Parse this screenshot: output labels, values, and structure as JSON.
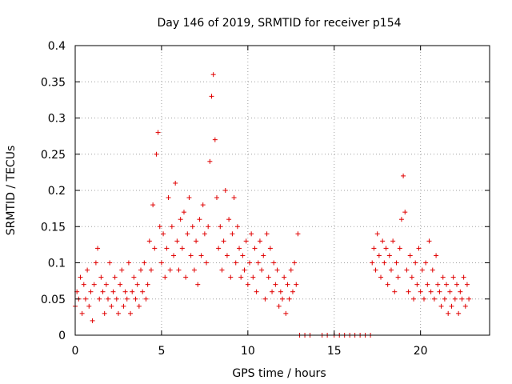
{
  "chart_data": {
    "type": "scatter",
    "title": "Day 146 of 2019, SRMTID for receiver p154",
    "xlabel": "GPS time / hours",
    "ylabel": "SRMTID / TECUs",
    "xlim": [
      0,
      24
    ],
    "ylim": [
      0,
      0.4
    ],
    "grid": true,
    "marker": "+",
    "colors": {
      "marker": "#e00000"
    },
    "x_ticks": [
      0,
      5,
      10,
      15,
      20
    ],
    "x_tick_labels": [
      "0",
      "5",
      "10",
      "15",
      "20"
    ],
    "y_ticks": [
      0,
      0.05,
      0.1,
      0.15,
      0.2,
      0.25,
      0.3,
      0.35,
      0.4
    ],
    "y_tick_labels": [
      "0",
      "0.05",
      "0.1",
      "0.15",
      "0.2",
      "0.25",
      "0.3",
      "0.35",
      "0.4"
    ],
    "series": [
      {
        "name": "SRMTID",
        "points": [
          [
            0.0,
            0.04
          ],
          [
            0.1,
            0.06
          ],
          [
            0.2,
            0.05
          ],
          [
            0.3,
            0.08
          ],
          [
            0.4,
            0.03
          ],
          [
            0.5,
            0.07
          ],
          [
            0.6,
            0.05
          ],
          [
            0.7,
            0.09
          ],
          [
            0.8,
            0.04
          ],
          [
            0.9,
            0.06
          ],
          [
            1.0,
            0.02
          ],
          [
            1.1,
            0.07
          ],
          [
            1.2,
            0.1
          ],
          [
            1.3,
            0.12
          ],
          [
            1.4,
            0.05
          ],
          [
            1.5,
            0.08
          ],
          [
            1.6,
            0.06
          ],
          [
            1.7,
            0.03
          ],
          [
            1.8,
            0.07
          ],
          [
            1.9,
            0.05
          ],
          [
            2.0,
            0.1
          ],
          [
            2.1,
            0.04
          ],
          [
            2.2,
            0.06
          ],
          [
            2.3,
            0.08
          ],
          [
            2.4,
            0.05
          ],
          [
            2.5,
            0.03
          ],
          [
            2.6,
            0.07
          ],
          [
            2.7,
            0.09
          ],
          [
            2.8,
            0.04
          ],
          [
            2.9,
            0.06
          ],
          [
            3.0,
            0.05
          ],
          [
            3.1,
            0.1
          ],
          [
            3.2,
            0.03
          ],
          [
            3.3,
            0.06
          ],
          [
            3.4,
            0.08
          ],
          [
            3.5,
            0.05
          ],
          [
            3.6,
            0.07
          ],
          [
            3.7,
            0.04
          ],
          [
            3.8,
            0.09
          ],
          [
            3.9,
            0.06
          ],
          [
            4.0,
            0.1
          ],
          [
            4.1,
            0.05
          ],
          [
            4.2,
            0.07
          ],
          [
            4.3,
            0.13
          ],
          [
            4.4,
            0.09
          ],
          [
            4.5,
            0.18
          ],
          [
            4.6,
            0.12
          ],
          [
            4.7,
            0.25
          ],
          [
            4.8,
            0.28
          ],
          [
            4.9,
            0.15
          ],
          [
            5.0,
            0.1
          ],
          [
            5.1,
            0.14
          ],
          [
            5.2,
            0.08
          ],
          [
            5.3,
            0.12
          ],
          [
            5.4,
            0.19
          ],
          [
            5.5,
            0.09
          ],
          [
            5.6,
            0.15
          ],
          [
            5.7,
            0.11
          ],
          [
            5.8,
            0.21
          ],
          [
            5.9,
            0.13
          ],
          [
            6.0,
            0.09
          ],
          [
            6.1,
            0.16
          ],
          [
            6.2,
            0.12
          ],
          [
            6.3,
            0.17
          ],
          [
            6.4,
            0.08
          ],
          [
            6.5,
            0.14
          ],
          [
            6.6,
            0.19
          ],
          [
            6.7,
            0.11
          ],
          [
            6.8,
            0.15
          ],
          [
            6.9,
            0.09
          ],
          [
            7.0,
            0.13
          ],
          [
            7.1,
            0.07
          ],
          [
            7.2,
            0.16
          ],
          [
            7.3,
            0.11
          ],
          [
            7.4,
            0.18
          ],
          [
            7.5,
            0.14
          ],
          [
            7.6,
            0.1
          ],
          [
            7.7,
            0.15
          ],
          [
            7.8,
            0.24
          ],
          [
            7.9,
            0.33
          ],
          [
            8.0,
            0.36
          ],
          [
            8.1,
            0.27
          ],
          [
            8.2,
            0.19
          ],
          [
            8.3,
            0.12
          ],
          [
            8.4,
            0.15
          ],
          [
            8.5,
            0.09
          ],
          [
            8.6,
            0.13
          ],
          [
            8.7,
            0.2
          ],
          [
            8.8,
            0.11
          ],
          [
            8.9,
            0.16
          ],
          [
            9.0,
            0.08
          ],
          [
            9.1,
            0.14
          ],
          [
            9.2,
            0.19
          ],
          [
            9.3,
            0.1
          ],
          [
            9.4,
            0.15
          ],
          [
            9.5,
            0.12
          ],
          [
            9.6,
            0.08
          ],
          [
            9.7,
            0.11
          ],
          [
            9.8,
            0.09
          ],
          [
            9.9,
            0.13
          ],
          [
            10.0,
            0.07
          ],
          [
            10.1,
            0.1
          ],
          [
            10.2,
            0.14
          ],
          [
            10.3,
            0.08
          ],
          [
            10.4,
            0.12
          ],
          [
            10.5,
            0.06
          ],
          [
            10.6,
            0.1
          ],
          [
            10.7,
            0.13
          ],
          [
            10.8,
            0.09
          ],
          [
            10.9,
            0.11
          ],
          [
            11.0,
            0.05
          ],
          [
            11.1,
            0.14
          ],
          [
            11.2,
            0.08
          ],
          [
            11.3,
            0.12
          ],
          [
            11.4,
            0.06
          ],
          [
            11.5,
            0.1
          ],
          [
            11.6,
            0.07
          ],
          [
            11.7,
            0.09
          ],
          [
            11.8,
            0.04
          ],
          [
            11.9,
            0.06
          ],
          [
            12.0,
            0.05
          ],
          [
            12.1,
            0.08
          ],
          [
            12.2,
            0.03
          ],
          [
            12.3,
            0.07
          ],
          [
            12.4,
            0.05
          ],
          [
            12.5,
            0.09
          ],
          [
            12.6,
            0.06
          ],
          [
            12.7,
            0.1
          ],
          [
            12.8,
            0.07
          ],
          [
            12.9,
            0.14
          ],
          [
            13.0,
            0.0
          ],
          [
            13.3,
            0.0
          ],
          [
            13.6,
            0.0
          ],
          [
            14.3,
            0.0
          ],
          [
            14.6,
            0.0
          ],
          [
            15.0,
            0.0
          ],
          [
            15.3,
            0.0
          ],
          [
            15.6,
            0.0
          ],
          [
            15.9,
            0.0
          ],
          [
            16.2,
            0.0
          ],
          [
            16.5,
            0.0
          ],
          [
            16.8,
            0.0
          ],
          [
            17.1,
            0.0
          ],
          [
            17.2,
            0.1
          ],
          [
            17.3,
            0.12
          ],
          [
            17.4,
            0.09
          ],
          [
            17.5,
            0.14
          ],
          [
            17.6,
            0.11
          ],
          [
            17.7,
            0.08
          ],
          [
            17.8,
            0.13
          ],
          [
            17.9,
            0.1
          ],
          [
            18.0,
            0.12
          ],
          [
            18.1,
            0.07
          ],
          [
            18.2,
            0.11
          ],
          [
            18.3,
            0.09
          ],
          [
            18.4,
            0.13
          ],
          [
            18.5,
            0.06
          ],
          [
            18.6,
            0.1
          ],
          [
            18.7,
            0.08
          ],
          [
            18.8,
            0.12
          ],
          [
            18.9,
            0.16
          ],
          [
            19.0,
            0.22
          ],
          [
            19.1,
            0.17
          ],
          [
            19.2,
            0.09
          ],
          [
            19.3,
            0.06
          ],
          [
            19.4,
            0.11
          ],
          [
            19.5,
            0.08
          ],
          [
            19.6,
            0.05
          ],
          [
            19.7,
            0.1
          ],
          [
            19.8,
            0.07
          ],
          [
            19.9,
            0.12
          ],
          [
            20.0,
            0.06
          ],
          [
            20.1,
            0.09
          ],
          [
            20.2,
            0.05
          ],
          [
            20.3,
            0.1
          ],
          [
            20.4,
            0.07
          ],
          [
            20.5,
            0.13
          ],
          [
            20.6,
            0.06
          ],
          [
            20.7,
            0.09
          ],
          [
            20.8,
            0.05
          ],
          [
            20.9,
            0.11
          ],
          [
            21.0,
            0.07
          ],
          [
            21.1,
            0.06
          ],
          [
            21.2,
            0.04
          ],
          [
            21.3,
            0.08
          ],
          [
            21.4,
            0.05
          ],
          [
            21.5,
            0.07
          ],
          [
            21.6,
            0.03
          ],
          [
            21.7,
            0.06
          ],
          [
            21.8,
            0.04
          ],
          [
            21.9,
            0.08
          ],
          [
            22.0,
            0.05
          ],
          [
            22.1,
            0.07
          ],
          [
            22.2,
            0.03
          ],
          [
            22.3,
            0.06
          ],
          [
            22.4,
            0.05
          ],
          [
            22.5,
            0.08
          ],
          [
            22.6,
            0.04
          ],
          [
            22.7,
            0.07
          ],
          [
            22.8,
            0.05
          ]
        ]
      }
    ]
  }
}
